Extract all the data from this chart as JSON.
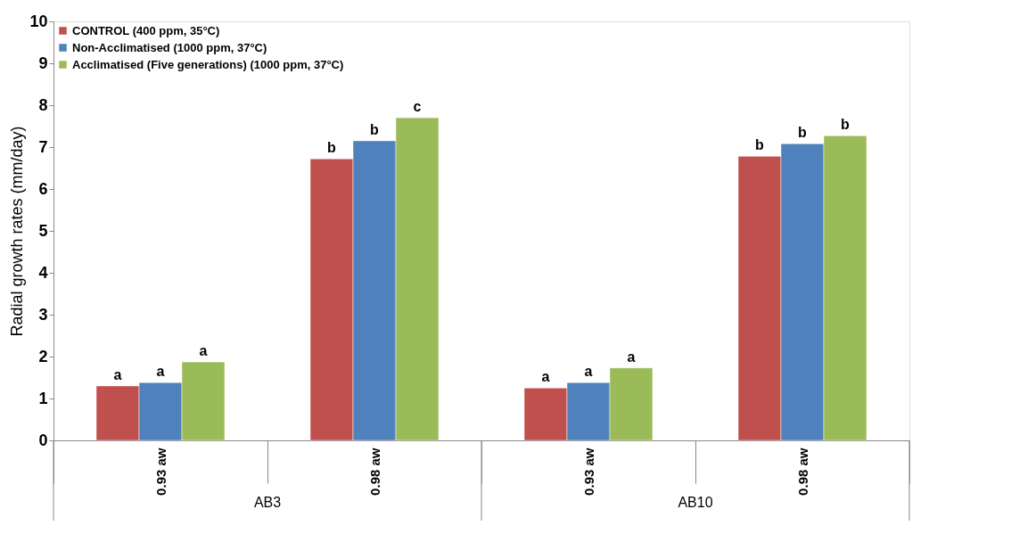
{
  "chart_data": {
    "type": "bar",
    "ylabel": "Radial growth rates  (mm/day)",
    "categories": [
      "0.93 aw",
      "0.98 aw",
      "0.93 aw",
      "0.98 aw"
    ],
    "series": [
      {
        "name": "CONTROL (400 ppm, 35°C)",
        "color": "#c0504d",
        "values": [
          1.3,
          6.72,
          1.25,
          6.78
        ],
        "value_labels": [
          "a",
          "b",
          "a",
          "b"
        ]
      },
      {
        "name": "Non-Acclimatised (1000 ppm, 37°C)",
        "color": "#4f81bd",
        "values": [
          1.38,
          7.15,
          1.38,
          7.08
        ],
        "value_labels": [
          "a",
          "b",
          "a",
          "b"
        ]
      },
      {
        "name": "Acclimatised (Five generations) (1000 ppm, 37°C)",
        "color": "#9bbb59",
        "values": [
          1.87,
          7.7,
          1.73,
          7.27
        ],
        "value_labels": [
          "a",
          "c",
          "a",
          "b"
        ]
      }
    ],
    "ylim": [
      0,
      10
    ],
    "yticks": [
      0,
      1,
      2,
      3,
      4,
      5,
      6,
      7,
      8,
      9,
      10
    ],
    "grid": false,
    "legend": "top left",
    "annotations": [
      "AB3",
      "AB10"
    ]
  }
}
